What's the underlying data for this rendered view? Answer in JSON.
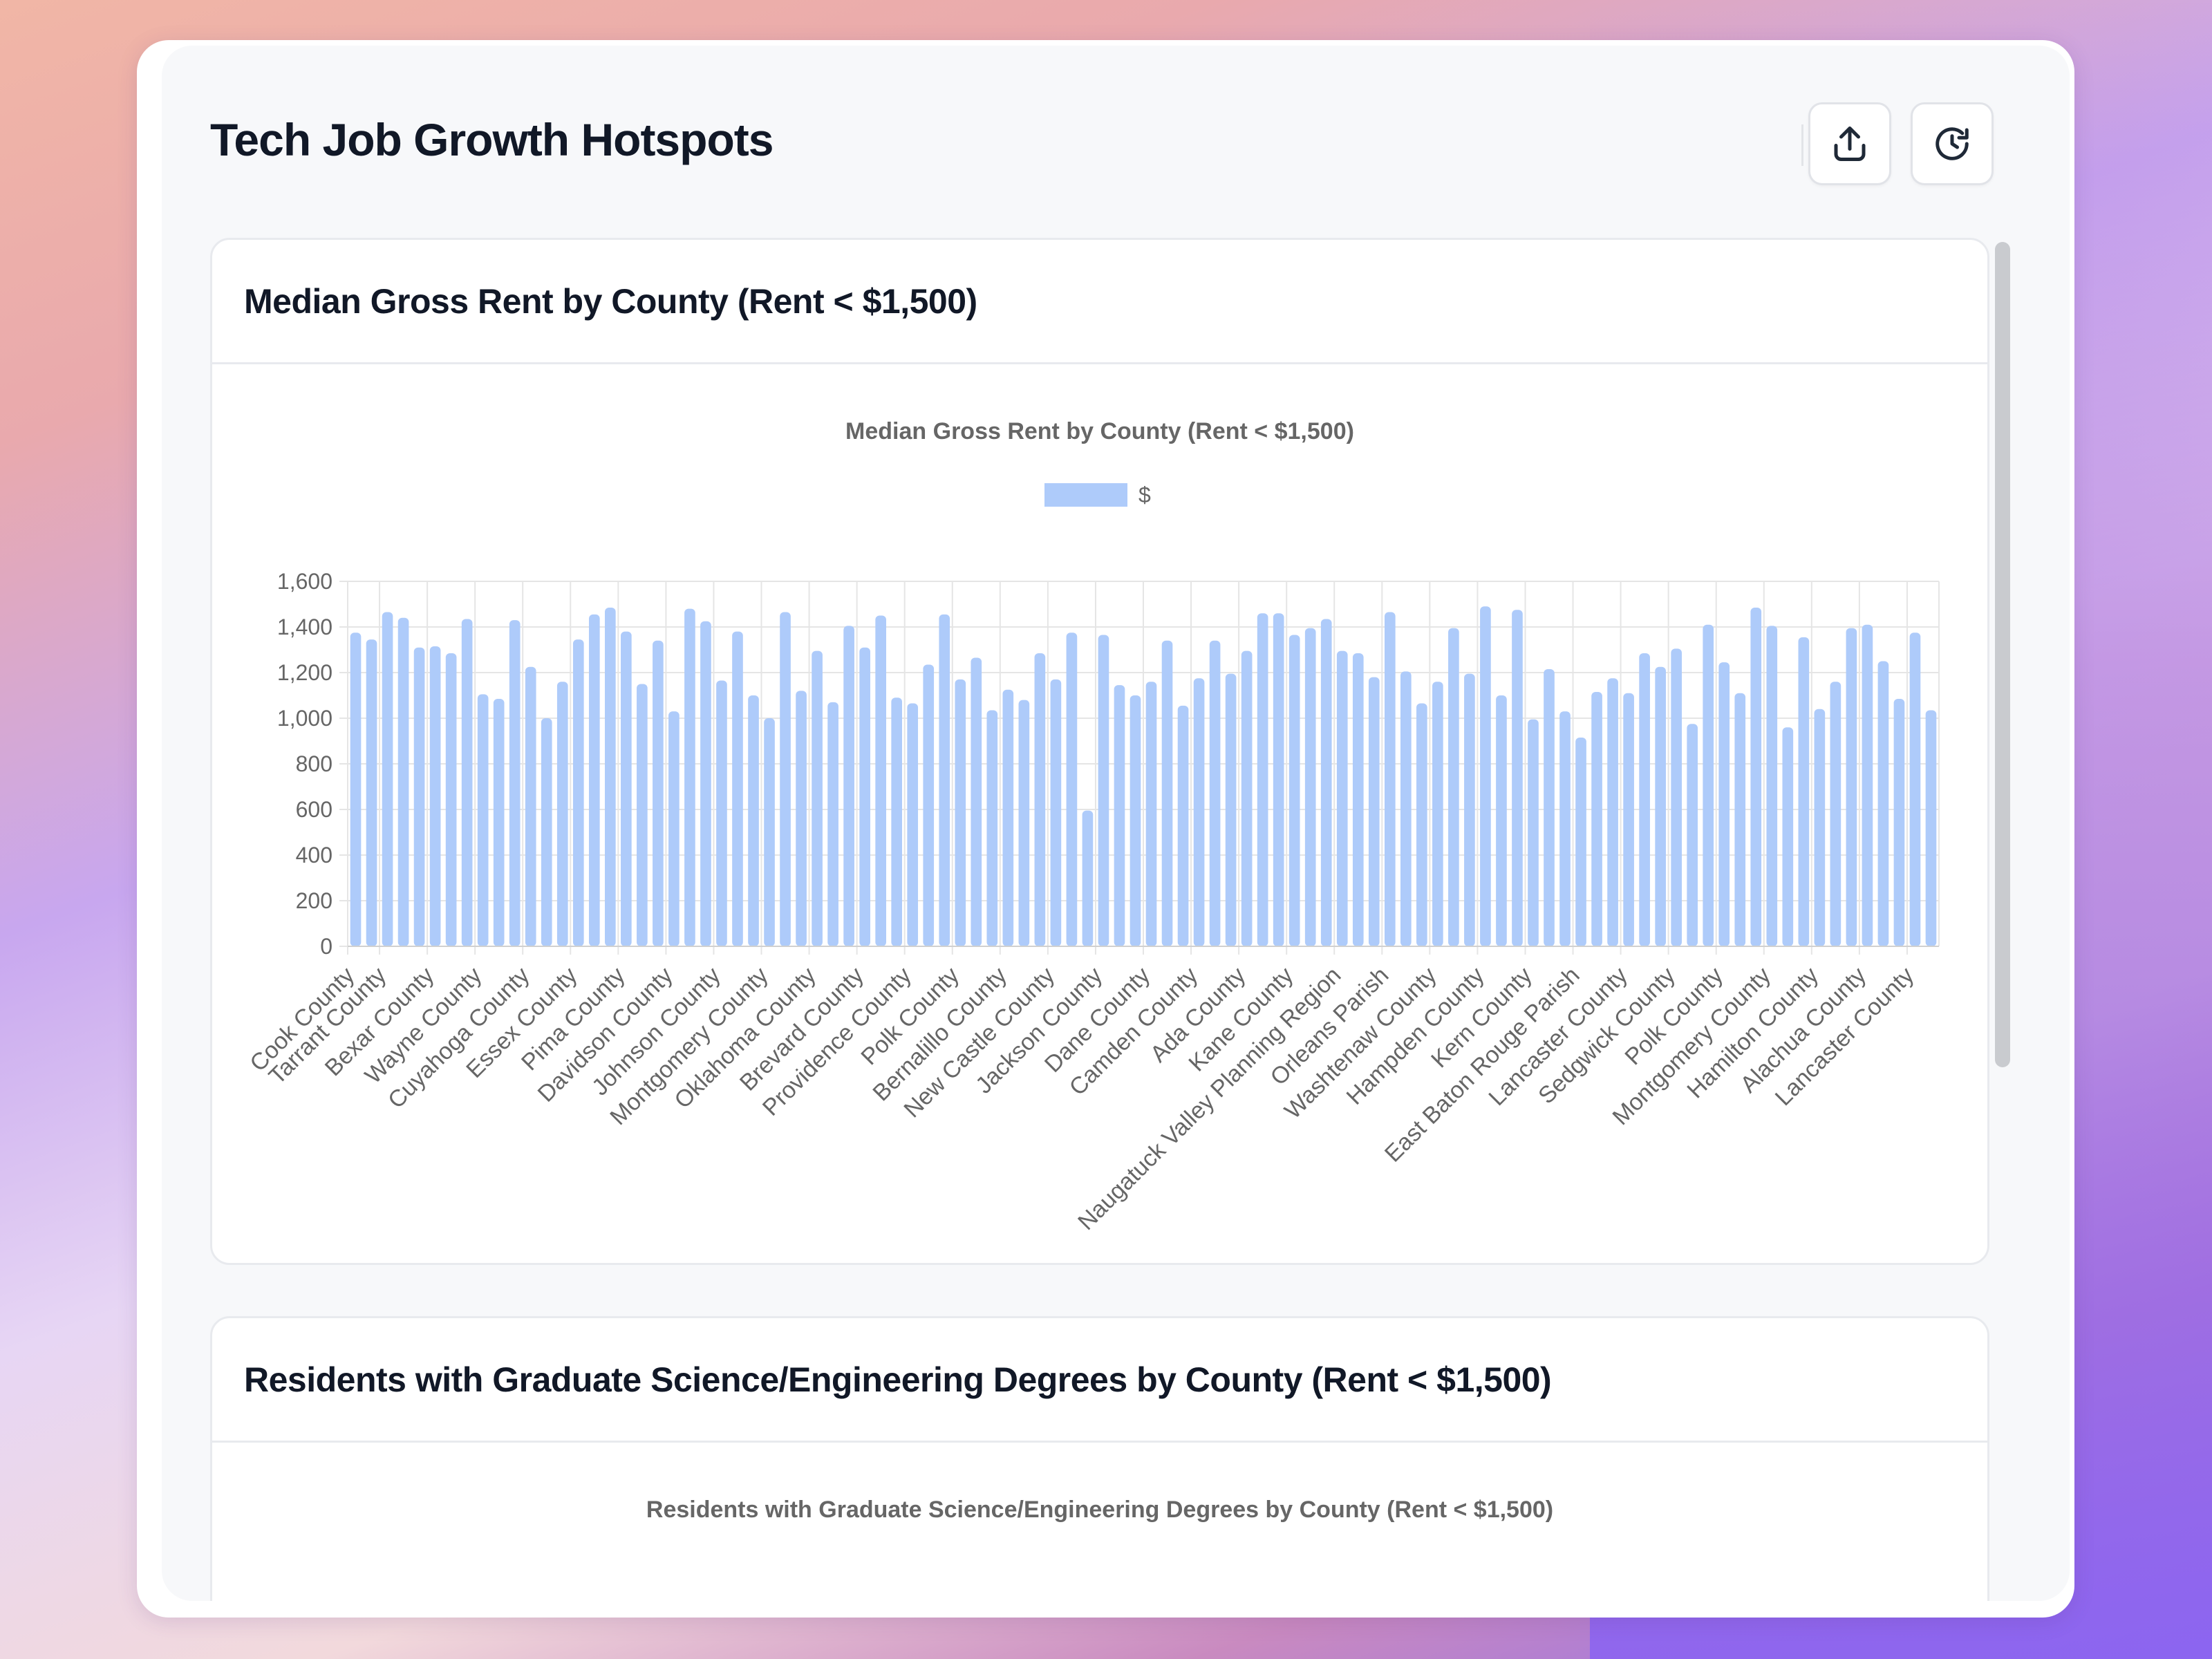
{
  "app": {
    "title": "Tech Job Growth Hotspots"
  },
  "header": {
    "actions": [
      {
        "name": "export",
        "icon": "upload-icon"
      },
      {
        "name": "history",
        "icon": "history-icon"
      }
    ]
  },
  "colors": {
    "bar": "#aecbfa",
    "grid": "#e5e5e5",
    "axis_text": "#666666",
    "title": "#111827"
  },
  "cards": [
    {
      "title": "Median Gross Rent by County (Rent < $1,500)"
    },
    {
      "title": "Residents with Graduate Science/Engineering Degrees by County (Rent < $1,500)"
    }
  ],
  "chart_data": [
    {
      "type": "bar",
      "title": "Median Gross Rent by County (Rent < $1,500)",
      "legend": {
        "label": "$",
        "position": "top"
      },
      "xlabel": "",
      "ylabel": "",
      "ylim": [
        0,
        1600
      ],
      "yticks": [
        "0",
        "200",
        "400",
        "600",
        "800",
        "1,000",
        "1,200",
        "1,400",
        "1,600"
      ],
      "categories": [
        "Cook County",
        "",
        "Tarrant County",
        "",
        "",
        "Bexar County",
        "",
        "",
        "Wayne County",
        "",
        "",
        "Cuyahoga County",
        "",
        "",
        "Essex County",
        "",
        "",
        "Pima County",
        "",
        "",
        "Davidson County",
        "",
        "",
        "Johnson County",
        "",
        "",
        "Montgomery County",
        "",
        "",
        "Oklahoma County",
        "",
        "",
        "Brevard County",
        "",
        "",
        "Providence County",
        "",
        "",
        "Polk County",
        "",
        "",
        "Bernalillo County",
        "",
        "",
        "New Castle County",
        "",
        "",
        "Jackson County",
        "",
        "",
        "Dane County",
        "",
        "",
        "Camden County",
        "",
        "",
        "Ada County",
        "",
        "",
        "Kane County",
        "",
        "",
        "Naugatuck Valley Planning Region",
        "",
        "",
        "Orleans Parish",
        "",
        "",
        "Washtenaw County",
        "",
        "",
        "Hampden County",
        "",
        "",
        "Kern County",
        "",
        "",
        "East Baton Rouge Parish",
        "",
        "",
        "Lancaster County",
        "",
        "",
        "Sedgwick County",
        "",
        "",
        "Polk County",
        "",
        "",
        "Montgomery County",
        "",
        "",
        "Hamilton County",
        "",
        "",
        "Alachua County",
        "",
        "",
        "Lancaster County",
        ""
      ],
      "series": [
        {
          "name": "$",
          "values": [
            1375,
            1345,
            1465,
            1440,
            1310,
            1315,
            1285,
            1435,
            1105,
            1085,
            1430,
            1225,
            1000,
            1160,
            1345,
            1455,
            1485,
            1380,
            1150,
            1340,
            1030,
            1480,
            1425,
            1165,
            1380,
            1100,
            1000,
            1465,
            1120,
            1295,
            1070,
            1405,
            1310,
            1450,
            1090,
            1065,
            1235,
            1455,
            1170,
            1265,
            1035,
            1125,
            1080,
            1285,
            1170,
            1375,
            595,
            1365,
            1145,
            1100,
            1160,
            1340,
            1055,
            1175,
            1340,
            1195,
            1295,
            1460,
            1460,
            1365,
            1395,
            1435,
            1295,
            1285,
            1180,
            1465,
            1205,
            1065,
            1160,
            1395,
            1195,
            1490,
            1100,
            1475,
            995,
            1215,
            1030,
            915,
            1115,
            1175,
            1110,
            1285,
            1225,
            1305,
            975,
            1410,
            1245,
            1110,
            1485,
            1405,
            960,
            1355,
            1040,
            1160,
            1395,
            1410,
            1250,
            1085,
            1375,
            1035
          ]
        }
      ]
    },
    {
      "type": "bar",
      "title": "Residents with Graduate Science/Engineering Degrees by County (Rent < $1,500)"
    }
  ]
}
